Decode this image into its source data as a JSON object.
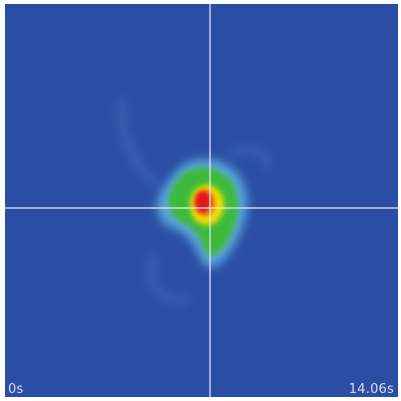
{
  "view": {
    "time_start": "0s",
    "time_end": "14.06s",
    "colors": {
      "background": "#2a4ea3",
      "crosshair": "#e8ecf8",
      "hot_core": "#e2171c",
      "warm": "#f5e000",
      "mid": "#3cba3a",
      "cool": "#5aa8e0"
    }
  }
}
